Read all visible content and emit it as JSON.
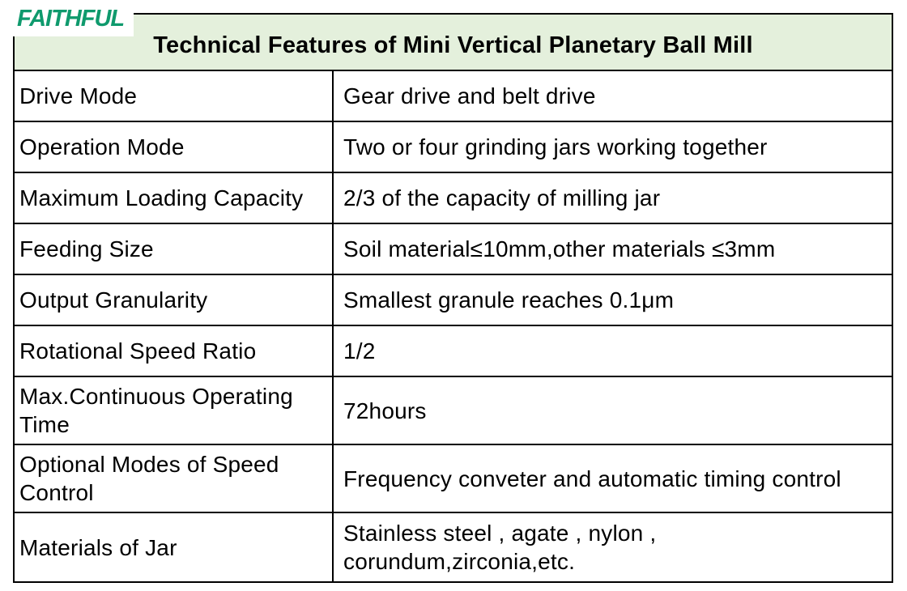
{
  "logo": {
    "text": "FAITHFUL",
    "color": "#0f9a6d"
  },
  "table": {
    "title": "Technical Features of Mini Vertical Planetary Ball Mill",
    "header_bg": "#e4f0dc",
    "border_color": "#000000",
    "rows": [
      {
        "label": "Drive Mode",
        "value": "Gear drive and belt drive"
      },
      {
        "label": "Operation Mode",
        "value": "Two or four grinding jars working together"
      },
      {
        "label": "Maximum Loading Capacity",
        "value": "2/3 of the capacity of milling jar"
      },
      {
        "label": "Feeding Size",
        "value": "Soil material≤10mm,other materials ≤3mm"
      },
      {
        "label": "Output Granularity",
        "value": "Smallest granule reaches 0.1μm"
      },
      {
        "label": "Rotational Speed Ratio",
        "value": "1/2"
      },
      {
        "label": "Max.Continuous Operating Time",
        "value": "72hours"
      },
      {
        "label": "Optional Modes of Speed Control",
        "value": "Frequency conveter and automatic timing control"
      },
      {
        "label": "Materials of Jar",
        "value": "Stainless steel , agate , nylon , corundum,zirconia,etc."
      }
    ]
  }
}
